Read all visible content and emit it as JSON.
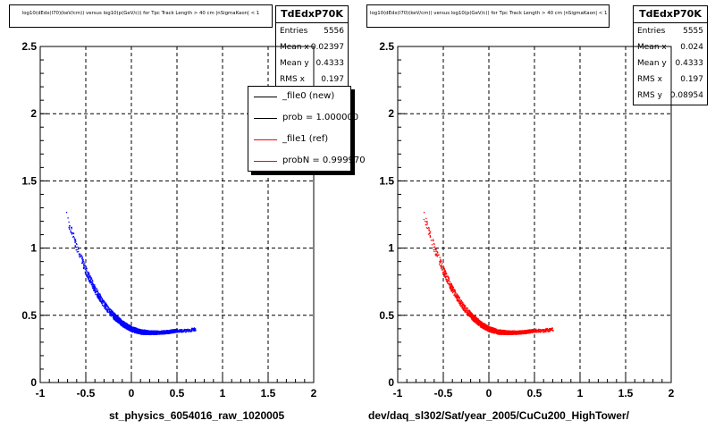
{
  "chart_data": [
    {
      "type": "scatter",
      "title": "log10(dEdx(I70)(keV/cm)) versus log10(p(GeV/c)) for Tpc Track Length > 40 cm |nSigmaKaon| < 1",
      "xlabel": "st_physics_6054016_raw_1020005",
      "ylabel": "",
      "xlim": [
        -1,
        2
      ],
      "ylim": [
        0,
        2.5
      ],
      "xticks": [
        "-1",
        "-0.5",
        "0",
        "0.5",
        "1",
        "1.5",
        "2"
      ],
      "yticks": [
        "0",
        "0.5",
        "1",
        "1.5",
        "2",
        "2.5"
      ],
      "grid": true,
      "series": [
        {
          "name": "_file0 (new)",
          "color": "#0000ff",
          "band": {
            "x_min": -0.72,
            "x_max": 0.7,
            "y_points": [
              [
                -0.72,
                1.25
              ],
              [
                -0.6,
                1.0
              ],
              [
                -0.5,
                0.83
              ],
              [
                -0.4,
                0.69
              ],
              [
                -0.3,
                0.58
              ],
              [
                -0.2,
                0.5
              ],
              [
                -0.1,
                0.44
              ],
              [
                0.0,
                0.4
              ],
              [
                0.1,
                0.38
              ],
              [
                0.2,
                0.375
              ],
              [
                0.3,
                0.375
              ],
              [
                0.4,
                0.38
              ],
              [
                0.5,
                0.39
              ],
              [
                0.6,
                0.39
              ],
              [
                0.7,
                0.4
              ]
            ]
          }
        }
      ],
      "stats": {
        "name": "TdEdxP70K",
        "rows": [
          {
            "label": "Entries",
            "value": "5556"
          },
          {
            "label": "Mean x",
            "value": "0.02397"
          },
          {
            "label": "Mean y",
            "value": "0.4333"
          },
          {
            "label": "RMS x",
            "value": "0.197"
          }
        ]
      },
      "legend": [
        {
          "label": "_file0 (new)",
          "color": "#000000"
        },
        {
          "label": "prob = 1.000000",
          "color": "#000000"
        },
        {
          "label": "_file1 (ref)",
          "color": "#ff0000"
        },
        {
          "label": "probN = 0.999970",
          "color": "#ff0000"
        }
      ]
    },
    {
      "type": "scatter",
      "title": "log10(dEdx(I70)(keV/cm)) versus log10(p(GeV/c)) for Tpc Track Length > 40 cm |nSigmaKaon| < 1",
      "xlabel": "dev/daq_sl302/Sat/year_2005/CuCu200_HighTower/",
      "ylabel": "",
      "xlim": [
        -1,
        2
      ],
      "ylim": [
        0,
        2.5
      ],
      "xticks": [
        "-1",
        "-0.5",
        "0",
        "0.5",
        "1",
        "1.5",
        "2"
      ],
      "yticks": [
        "0",
        "0.5",
        "1",
        "1.5",
        "2",
        "2.5"
      ],
      "grid": true,
      "series": [
        {
          "name": "_file1 (ref)",
          "color": "#ff0000",
          "band": {
            "x_min": -0.72,
            "x_max": 0.7,
            "y_points": [
              [
                -0.72,
                1.25
              ],
              [
                -0.6,
                1.0
              ],
              [
                -0.5,
                0.83
              ],
              [
                -0.4,
                0.69
              ],
              [
                -0.3,
                0.58
              ],
              [
                -0.2,
                0.5
              ],
              [
                -0.1,
                0.44
              ],
              [
                0.0,
                0.4
              ],
              [
                0.1,
                0.38
              ],
              [
                0.2,
                0.375
              ],
              [
                0.3,
                0.375
              ],
              [
                0.4,
                0.38
              ],
              [
                0.5,
                0.39
              ],
              [
                0.6,
                0.39
              ],
              [
                0.7,
                0.4
              ]
            ]
          }
        }
      ],
      "stats": {
        "name": "TdEdxP70K",
        "rows": [
          {
            "label": "Entries",
            "value": "5555"
          },
          {
            "label": "Mean x",
            "value": "0.024"
          },
          {
            "label": "Mean y",
            "value": "0.4333"
          },
          {
            "label": "RMS x",
            "value": "0.197"
          },
          {
            "label": "RMS y",
            "value": "0.08954"
          }
        ]
      }
    }
  ]
}
